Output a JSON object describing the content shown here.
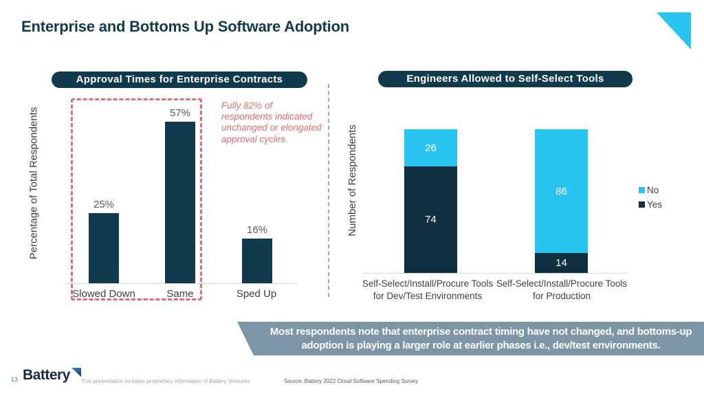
{
  "colors": {
    "navy": "#113A4C",
    "cyan": "#29C5F0",
    "annotation_red": "#E06F6F",
    "banner_bg": "#7E95A5",
    "title_text": "#113B4D"
  },
  "header": {
    "title": "Enterprise and Bottoms Up Software Adoption"
  },
  "chart_data": [
    {
      "type": "bar",
      "title": "Approval Times for Enterprise Contracts",
      "ylabel": "Percentage of Total Respondents",
      "xlabel": "",
      "categories": [
        "Slowed Down",
        "Same",
        "Sped Up"
      ],
      "values": [
        25,
        57,
        16
      ],
      "value_labels": [
        "25%",
        "57%",
        "16%"
      ],
      "unit": "percent of respondents",
      "bar_color": "#113A4C",
      "annotation": "Fully 82% of respondents indicated unchanged or elongated approval cycles.",
      "highlight_note": "dashed red box around Slowed Down and Same bars",
      "grid": false
    },
    {
      "type": "stacked-bar",
      "title": "Engineers Allowed to Self-Select Tools",
      "ylabel": "Number of Respondents",
      "xlabel": "",
      "categories": [
        "Self-Select/Install/Procure Tools for Dev/Test Environments",
        "Self-Select/Install/Procure Tools for Production"
      ],
      "category_lines": [
        [
          "Self-Select/Install/Procure Tools",
          "for Dev/Test Environments"
        ],
        [
          "Self-Select/Install/Procure Tools",
          "for Production"
        ]
      ],
      "series": [
        {
          "name": "No",
          "color": "#29C5F0",
          "values": [
            26,
            86
          ]
        },
        {
          "name": "Yes",
          "color": "#0F2E40",
          "values": [
            74,
            14
          ]
        }
      ],
      "legend": [
        "No",
        "Yes"
      ],
      "legend_position": "right",
      "ylim": [
        0,
        100
      ],
      "grid": false
    }
  ],
  "banner": {
    "text": "Most respondents note that enterprise contract timing have not changed, and bottoms-up adoption is playing a larger role at earlier phases i.e., dev/test environments."
  },
  "footer": {
    "page_number": "13",
    "logo_text": "Battery",
    "disclaimer": "This presentation includes proprietary information of Battery Ventures",
    "source": "Source: Battery 2022 Cloud Software Spending Survey"
  }
}
